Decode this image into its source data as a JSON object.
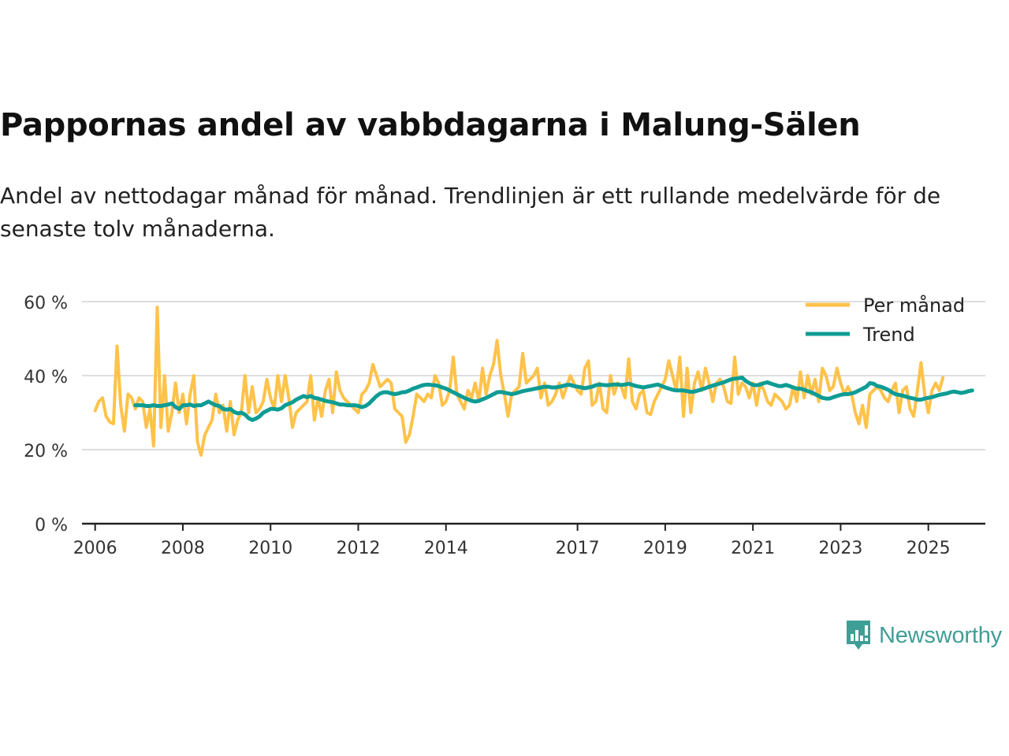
{
  "header": {
    "title": "Pappornas andel av vabbdagarna i Malung-Sälen",
    "subtitle": "Andel av nettodagar månad för månad. Trendlinjen är ett rullande medelvärde för de senaste tolv månaderna."
  },
  "brand": {
    "name": "Newsworthy",
    "color": "#3f9e96"
  },
  "colors": {
    "monthly": "#ffc24a",
    "trend": "#0e9c94",
    "grid": "#dedede",
    "axis": "#222222"
  },
  "chart_data": {
    "type": "line",
    "title": "Pappornas andel av vabbdagarna i Malung-Sälen",
    "xlabel": "",
    "ylabel": "",
    "ylim": [
      0,
      60
    ],
    "yticks": [
      0,
      20,
      40,
      60
    ],
    "ytick_labels": [
      "0 %",
      "20 %",
      "40 %",
      "60 %"
    ],
    "x_unit": "decimal year",
    "xlim": [
      2005.7,
      2026.3
    ],
    "xticks": [
      2006,
      2008,
      2010,
      2012,
      2014,
      2017,
      2019,
      2021,
      2023,
      2025
    ],
    "xtick_labels": [
      "2006",
      "2008",
      "2010",
      "2012",
      "2014",
      "2017",
      "2019",
      "2021",
      "2023",
      "2025"
    ],
    "legend_position": "top-right",
    "series": [
      {
        "name": "Per månad",
        "x_start": 2006.0,
        "step": 0.0833333,
        "values": [
          30.5,
          33,
          34,
          29,
          27.5,
          27,
          48,
          32,
          25,
          35,
          34,
          31,
          34,
          33,
          26,
          31,
          21,
          58.5,
          26,
          40,
          25,
          30,
          38,
          30,
          35,
          27,
          35,
          40,
          22,
          18.5,
          24,
          26,
          28,
          35,
          30,
          32,
          25,
          33,
          24,
          28,
          30,
          40,
          30,
          37,
          30,
          31,
          33,
          39,
          34,
          31,
          40,
          33,
          40,
          34,
          26,
          30,
          31,
          32,
          33,
          40,
          28,
          34,
          29,
          36,
          39,
          30,
          41,
          36,
          34,
          33,
          32,
          31,
          30,
          35,
          36,
          38,
          43,
          40,
          37,
          38,
          39,
          38,
          31,
          30,
          29,
          22,
          24,
          29,
          35,
          34,
          33,
          35,
          34,
          40,
          38,
          32,
          33,
          36,
          45,
          35,
          33,
          31,
          36,
          34,
          38,
          33,
          42,
          35,
          40,
          43,
          49.5,
          40,
          35,
          29,
          35,
          36,
          37,
          46,
          38,
          39,
          40,
          42,
          34,
          38,
          32,
          33,
          35,
          38,
          34,
          37,
          40,
          38,
          36,
          35,
          42,
          44,
          32,
          33,
          38,
          31,
          30,
          40,
          35,
          38,
          37,
          34,
          44.5,
          33,
          31,
          35,
          36,
          30,
          29.5,
          33,
          35,
          37,
          39,
          44,
          40,
          36,
          45,
          29,
          42,
          30,
          38,
          41,
          36,
          42,
          38,
          33,
          38,
          39,
          37,
          33,
          32.5,
          45,
          35,
          38,
          37,
          34,
          38,
          32,
          38,
          36,
          33,
          32,
          35,
          34,
          33,
          31,
          32,
          37,
          33,
          41,
          34,
          40,
          35,
          39,
          33,
          42,
          40,
          36,
          37,
          42,
          38,
          35,
          37,
          35,
          30,
          27,
          32,
          26,
          35,
          36,
          37,
          36,
          34,
          33,
          36,
          38,
          30,
          36,
          37,
          31,
          29,
          36,
          43.5,
          35,
          30,
          36,
          38,
          36,
          39.5
        ]
      },
      {
        "name": "Trend",
        "x_start": 2006.917,
        "step": 0.0833333,
        "values": [
          32,
          32,
          32,
          31.8,
          31.8,
          32,
          31.8,
          31.8,
          32,
          32.2,
          32.5,
          31.5,
          31,
          32,
          32,
          32.2,
          31.8,
          32,
          32,
          32.5,
          33,
          32.5,
          32,
          31.8,
          31,
          30.8,
          31,
          30.2,
          29.8,
          30,
          29.5,
          28.5,
          28,
          28.4,
          29,
          30,
          30.5,
          31,
          31,
          30.8,
          31.2,
          32,
          32.4,
          32.8,
          33.5,
          34,
          34.5,
          34.2,
          34.5,
          34,
          33.8,
          33.5,
          33.2,
          33,
          32.8,
          32.5,
          32.2,
          32.2,
          32,
          32,
          32,
          31.8,
          31.5,
          31.8,
          32.5,
          33.5,
          34.5,
          35.2,
          35.5,
          35.5,
          35.2,
          35,
          35.2,
          35.5,
          35.6,
          36,
          36.5,
          36.8,
          37.2,
          37.5,
          37.6,
          37.5,
          37.4,
          37.2,
          36.8,
          36.5,
          36,
          35.5,
          35,
          34.5,
          34,
          33.6,
          33.2,
          33,
          33.2,
          33.6,
          34,
          34.5,
          35,
          35.5,
          35.6,
          35.4,
          35.2,
          35,
          35.2,
          35.5,
          35.8,
          36,
          36.2,
          36.4,
          36.6,
          36.8,
          37,
          37,
          36.8,
          36.8,
          37,
          37.2,
          37.5,
          37.5,
          37.2,
          37,
          36.8,
          36.6,
          36.8,
          37,
          37.4,
          37.6,
          37.5,
          37.4,
          37.5,
          37.6,
          37.6,
          37.5,
          37.6,
          37.8,
          37.5,
          37.2,
          37,
          36.8,
          37,
          37.2,
          37.4,
          37.6,
          37.2,
          36.8,
          36.5,
          36.2,
          36,
          36,
          36,
          35.8,
          35.6,
          35.7,
          36,
          36.3,
          36.6,
          37,
          37.3,
          37.6,
          37.9,
          38.2,
          38.6,
          39,
          39.2,
          39.3,
          39.5,
          38.6,
          38,
          37.5,
          37.4,
          37.6,
          38,
          38.2,
          37.8,
          37.5,
          37.2,
          37.2,
          37.5,
          37.2,
          36.8,
          36.5,
          36.5,
          36.2,
          35.8,
          35.5,
          35,
          34.5,
          34,
          33.8,
          33.8,
          34.2,
          34.5,
          34.8,
          35,
          35,
          35.2,
          35.5,
          36,
          36.5,
          37,
          38,
          37.8,
          37.2,
          37,
          36.6,
          36.2,
          35.5,
          35,
          34.8,
          34.6,
          34.3,
          34,
          33.8,
          33.5,
          33.5,
          33.8,
          34,
          34.2,
          34.5,
          34.8,
          35,
          35.2,
          35.5,
          35.7,
          35.5,
          35.3,
          35.5,
          35.8,
          36
        ]
      }
    ]
  }
}
